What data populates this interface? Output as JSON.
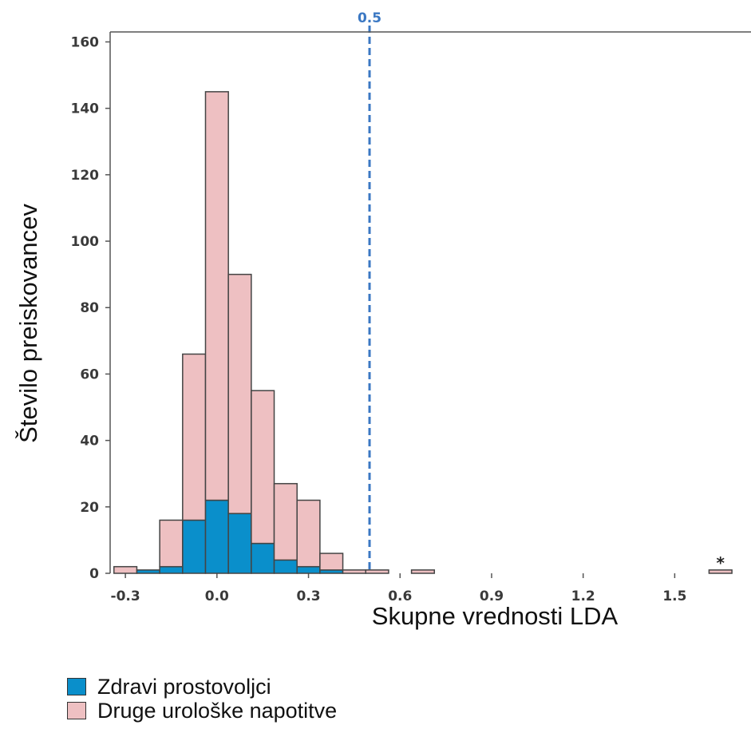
{
  "chart_data": {
    "type": "bar",
    "xlabel": "Skupne vrednosti LDA",
    "ylabel": "Število preiskovancev",
    "xlim": [
      -0.35,
      1.75
    ],
    "ylim": [
      0,
      163
    ],
    "xticks": [
      "-0.3",
      "0.0",
      "0.3",
      "0.6",
      "0.9",
      "1.2",
      "1.5"
    ],
    "yticks": [
      "0",
      "20",
      "40",
      "60",
      "80",
      "100",
      "120",
      "140",
      "160"
    ],
    "bin_width": 0.075,
    "bins": [
      -0.3,
      -0.225,
      -0.15,
      -0.075,
      0.0,
      0.075,
      0.15,
      0.225,
      0.3,
      0.375,
      0.45,
      0.525,
      0.6,
      0.675,
      0.75,
      0.825,
      0.9,
      1.65
    ],
    "series": [
      {
        "name": "Zdravi prostovoljci",
        "color": "#0a8fcb",
        "values": [
          0,
          1,
          2,
          16,
          22,
          18,
          9,
          4,
          2,
          1,
          0,
          0,
          0,
          0,
          0,
          0,
          0,
          0
        ]
      },
      {
        "name": "Druge urološke napotitve",
        "color": "#eec0c2",
        "values": [
          2,
          0,
          14,
          50,
          123,
          72,
          46,
          23,
          20,
          5,
          1,
          1,
          0,
          1,
          0,
          0,
          0,
          1
        ]
      }
    ],
    "reference_line": {
      "x": 0.5,
      "label": "0.5",
      "color": "#3b78c3"
    },
    "annotation": "*",
    "legend_position": "bottom-left"
  }
}
